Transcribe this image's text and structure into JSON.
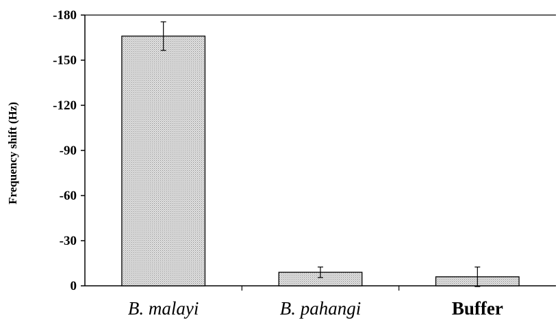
{
  "chart_data": {
    "type": "bar",
    "title": "",
    "xlabel": "",
    "ylabel": "Frequency shift (Hz)",
    "categories": [
      "B. malayi",
      "B. pahangi",
      "Buffer"
    ],
    "values": [
      -166,
      -9,
      -6
    ],
    "error": [
      9.5,
      3.5,
      6.5
    ],
    "ylim": [
      0,
      -180
    ],
    "yticks": [
      -180,
      -150,
      -120,
      -90,
      -60,
      -30,
      0
    ],
    "ytick_labels": [
      "-180",
      "-150",
      "-120",
      "-90",
      "-60",
      "-30",
      "0"
    ],
    "grid": false,
    "legend": "none",
    "bar_fill": "#d4d4d4",
    "bar_edge": "#000000"
  }
}
